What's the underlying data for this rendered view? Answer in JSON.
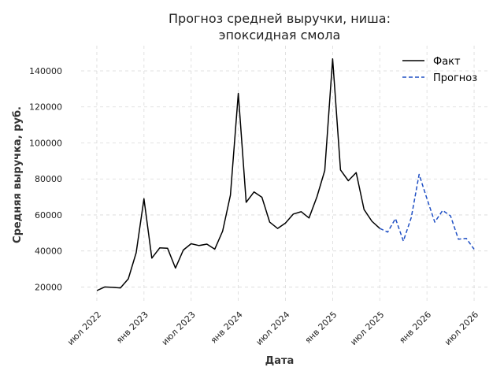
{
  "chart_data": {
    "type": "line",
    "title": [
      "Прогноз средней выручки, ниша:",
      "эпоксидная смола"
    ],
    "xlabel": "Дата",
    "ylabel": "Средняя выручка, руб.",
    "xlim": [
      "2022-05",
      "2026-09"
    ],
    "ylim": [
      11000,
      154000
    ],
    "grid": true,
    "legend_placement": "top-right",
    "x_ticks": [
      {
        "value": "2022-07",
        "label": "июл 2022"
      },
      {
        "value": "2023-01",
        "label": "янв 2023"
      },
      {
        "value": "2023-07",
        "label": "июл 2023"
      },
      {
        "value": "2024-01",
        "label": "янв 2024"
      },
      {
        "value": "2024-07",
        "label": "июл 2024"
      },
      {
        "value": "2025-01",
        "label": "янв 2025"
      },
      {
        "value": "2025-07",
        "label": "июл 2025"
      },
      {
        "value": "2026-01",
        "label": "янв 2026"
      },
      {
        "value": "2026-07",
        "label": "июл 2026"
      }
    ],
    "y_ticks": [
      {
        "value": 20000,
        "label": "20000"
      },
      {
        "value": 40000,
        "label": "40000"
      },
      {
        "value": 60000,
        "label": "60000"
      },
      {
        "value": 80000,
        "label": "80000"
      },
      {
        "value": 100000,
        "label": "100000"
      },
      {
        "value": 120000,
        "label": "120000"
      },
      {
        "value": 140000,
        "label": "140000"
      }
    ],
    "series": [
      {
        "name": "Факт",
        "color": "#000000",
        "dash": "solid",
        "x": [
          "2022-07",
          "2022-08",
          "2022-09",
          "2022-10",
          "2022-11",
          "2022-12",
          "2023-01",
          "2023-02",
          "2023-03",
          "2023-04",
          "2023-05",
          "2023-06",
          "2023-07",
          "2023-08",
          "2023-09",
          "2023-10",
          "2023-11",
          "2023-12",
          "2024-01",
          "2024-02",
          "2024-03",
          "2024-04",
          "2024-05",
          "2024-06",
          "2024-07",
          "2024-08",
          "2024-09",
          "2024-10",
          "2024-11",
          "2024-12",
          "2025-01",
          "2025-02",
          "2025-03",
          "2025-04",
          "2025-05",
          "2025-06",
          "2025-07"
        ],
        "values": [
          18000,
          20000,
          19800,
          19500,
          24500,
          39000,
          69000,
          36000,
          41700,
          41500,
          30500,
          40500,
          44000,
          43000,
          43800,
          41000,
          51000,
          71000,
          127500,
          67000,
          72800,
          69800,
          56000,
          52500,
          55500,
          60500,
          61800,
          58300,
          70000,
          84700,
          146700,
          85000,
          79000,
          83500,
          63000,
          56500,
          52500
        ]
      },
      {
        "name": "Прогноз",
        "color": "#1f4fc4",
        "dash": "dashed",
        "x": [
          "2025-07",
          "2025-08",
          "2025-09",
          "2025-10",
          "2025-11",
          "2025-12",
          "2026-01",
          "2026-02",
          "2026-03",
          "2026-04",
          "2026-05",
          "2026-06",
          "2026-07"
        ],
        "values": [
          52500,
          50500,
          58000,
          45500,
          58500,
          82500,
          69000,
          56000,
          62500,
          59500,
          46500,
          47000,
          41000
        ]
      }
    ]
  }
}
